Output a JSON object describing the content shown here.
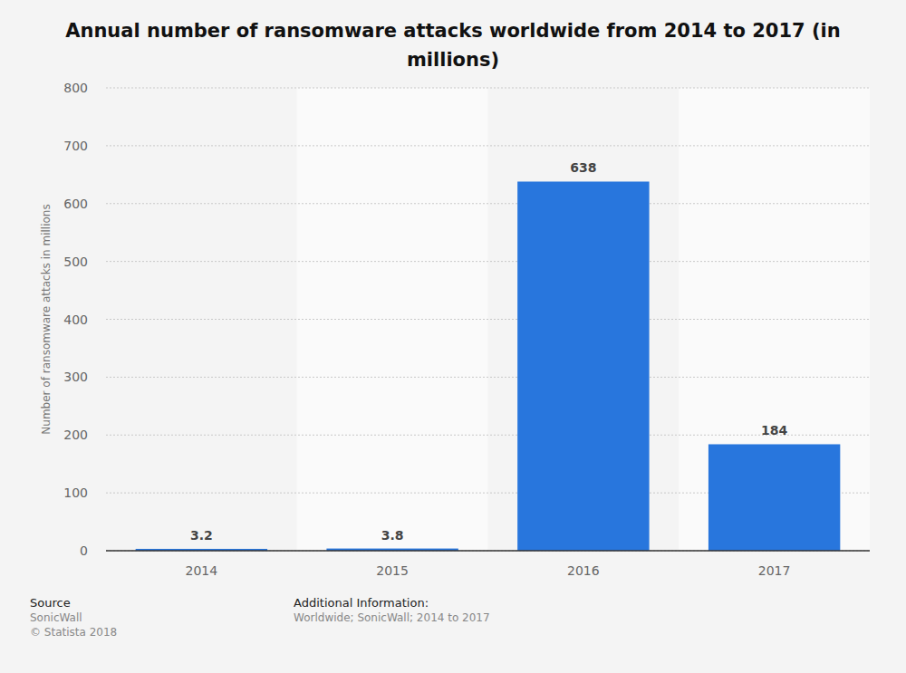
{
  "chart_data": {
    "type": "bar",
    "title": "Annual number of ransomware attacks worldwide from 2014 to 2017 (in millions)",
    "y_label": "Number of ransomware attacks in millions",
    "categories": [
      "2014",
      "2015",
      "2016",
      "2017"
    ],
    "values": [
      3.2,
      3.8,
      638,
      184
    ],
    "color": "#2876dd",
    "ylim": [
      0,
      800
    ],
    "yticks": [
      0,
      100,
      200,
      300,
      400,
      500,
      600,
      700,
      800
    ],
    "grid": true,
    "data_labels": true,
    "annotations": [
      "Source",
      "SonicWall",
      "© Statista 2018",
      "Additional Information:",
      "Worldwide; SonicWall; 2014 to 2017"
    ]
  }
}
